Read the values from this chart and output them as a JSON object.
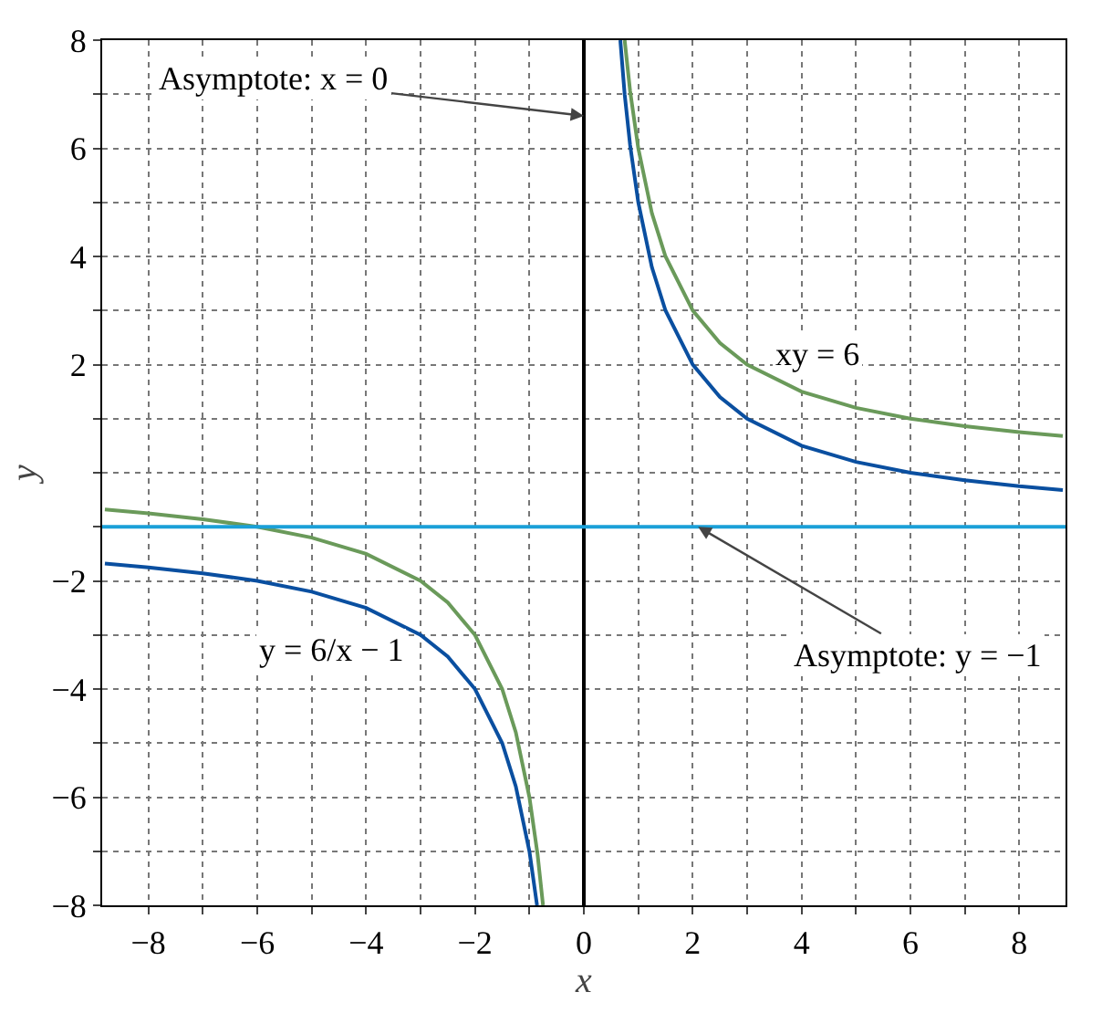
{
  "chart_data": {
    "type": "line",
    "xlabel": "x",
    "ylabel": "y",
    "xlim": [
      -8.85,
      8.85
    ],
    "ylim": [
      -8,
      8
    ],
    "xticks": [
      {
        "value": -8,
        "label": "−8"
      },
      {
        "value": -7,
        "label": null
      },
      {
        "value": -6,
        "label": "−6"
      },
      {
        "value": -5,
        "label": null
      },
      {
        "value": -4,
        "label": "−4"
      },
      {
        "value": -3,
        "label": null
      },
      {
        "value": -2,
        "label": "−2"
      },
      {
        "value": -1,
        "label": null
      },
      0,
      {
        "value": 1,
        "label": null
      },
      2,
      {
        "value": 3,
        "label": null
      },
      4,
      {
        "value": 5,
        "label": null
      },
      6,
      {
        "value": 7,
        "label": null
      },
      8
    ],
    "yticks": [
      {
        "value": -8,
        "label": "−8"
      },
      {
        "value": -7,
        "label": null
      },
      {
        "value": -6,
        "label": "−6"
      },
      {
        "value": -5,
        "label": null
      },
      {
        "value": -4,
        "label": "−4"
      },
      {
        "value": -3,
        "label": null
      },
      {
        "value": -2,
        "label": "−2"
      },
      {
        "value": -1,
        "label": null
      },
      {
        "value": 0,
        "label": null
      },
      {
        "value": 1,
        "label": null
      },
      2,
      {
        "value": 3,
        "label": null
      },
      4,
      {
        "value": 5,
        "label": null
      },
      6,
      {
        "value": 7,
        "label": null
      },
      8
    ],
    "grid": true,
    "legend": false,
    "marker": "none",
    "line_style": "solid",
    "series": [
      {
        "name": "xy = 6",
        "color": "#6a9a5a",
        "x": [
          -8.8,
          -8,
          -7,
          -6,
          -5,
          -4,
          -3,
          -2.5,
          -2,
          -1.5,
          -1.25,
          -1,
          -0.85,
          -0.75,
          null,
          0.75,
          0.85,
          1,
          1.25,
          1.5,
          2,
          2.5,
          3,
          4,
          5,
          6,
          7,
          8,
          8.8
        ],
        "values": [
          -0.68,
          -0.75,
          -0.86,
          -1,
          -1.2,
          -1.5,
          -2,
          -2.4,
          -3,
          -4,
          -4.8,
          -6,
          -7.06,
          -8,
          null,
          8,
          7.06,
          6,
          4.8,
          4,
          3,
          2.4,
          2,
          1.5,
          1.2,
          1,
          0.86,
          0.75,
          0.68
        ]
      },
      {
        "name": "y = 6/x − 1",
        "color": "#0a4fa0",
        "x": [
          -8.8,
          -8,
          -7,
          -6,
          -5,
          -4,
          -3,
          -2.5,
          -2,
          -1.5,
          -1.25,
          -1,
          -0.86,
          null,
          0.67,
          0.75,
          0.85,
          1,
          1.25,
          1.5,
          2,
          2.5,
          3,
          4,
          5,
          6,
          7,
          8,
          8.8
        ],
        "values": [
          -1.68,
          -1.75,
          -1.86,
          -2,
          -2.2,
          -2.5,
          -3,
          -3.4,
          -4,
          -5,
          -5.8,
          -7,
          -8,
          null,
          8,
          7,
          6.06,
          5,
          3.8,
          3,
          2,
          1.4,
          1,
          0.5,
          0.2,
          0,
          -0.14,
          -0.25,
          -0.32
        ]
      }
    ],
    "ref_lines": [
      {
        "axis": "x",
        "value": 0,
        "color": "#000000"
      },
      {
        "axis": "y",
        "value": -1,
        "color": "#1aa0d8"
      }
    ],
    "annotations": [
      {
        "text": "Asymptote: x = 0",
        "x": 0,
        "y": 6.6
      },
      {
        "text": "Asymptote: y = −1",
        "x": 2.1,
        "y": -1
      }
    ]
  }
}
